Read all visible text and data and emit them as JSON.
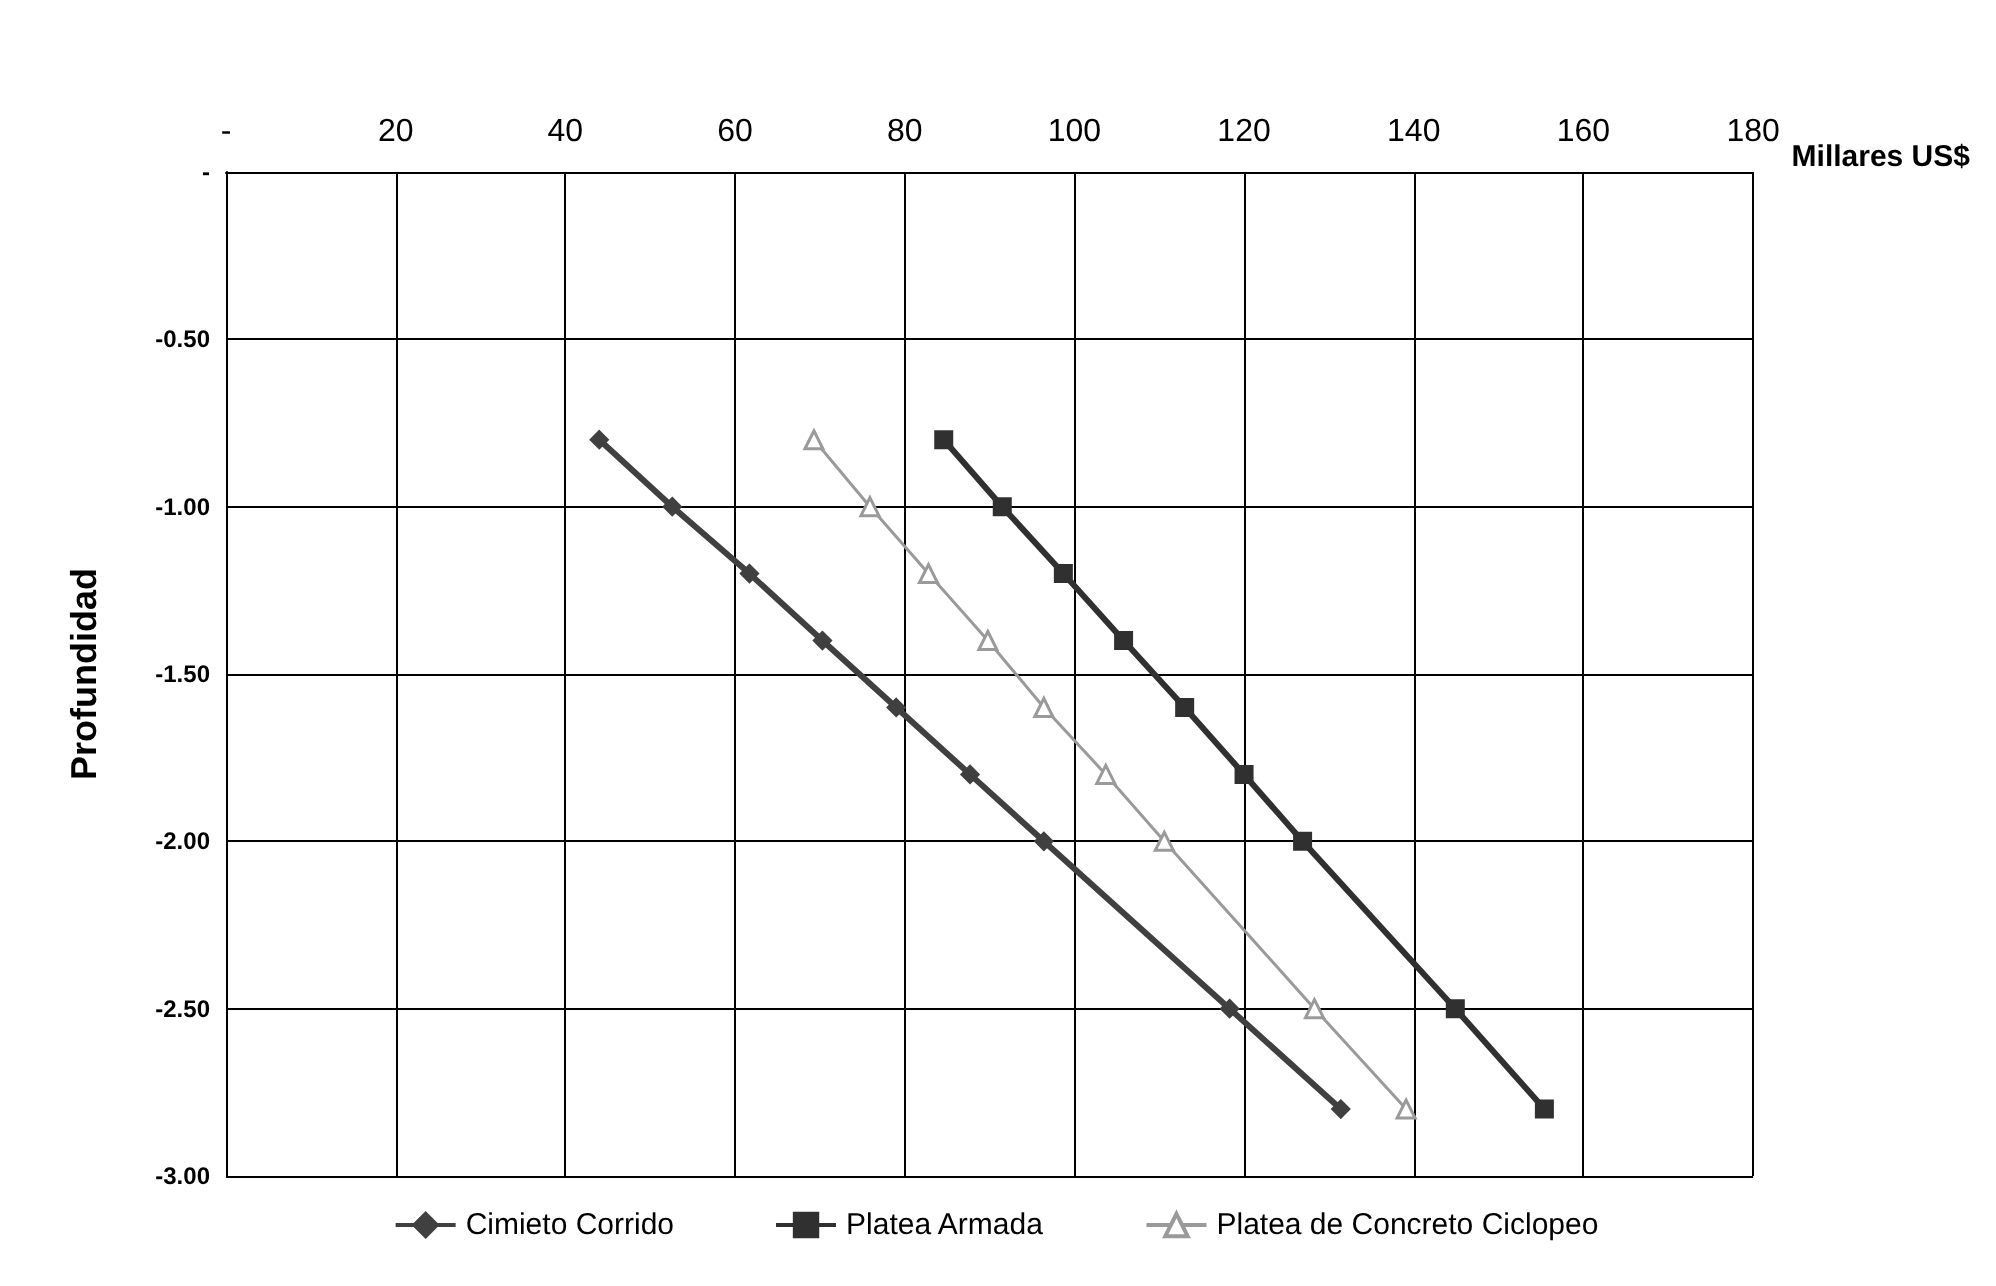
{
  "chart_data": {
    "type": "line",
    "xlabel": "Millares US$",
    "ylabel": "Profundidad",
    "xlim": [
      0,
      180
    ],
    "ylim": [
      -3,
      0
    ],
    "xticks": [
      {
        "value": 0,
        "label": "-"
      },
      20,
      40,
      60,
      80,
      100,
      120,
      140,
      160,
      180
    ],
    "yticks": [
      {
        "value": -3,
        "label": "-3.00"
      },
      {
        "value": -2.5,
        "label": "-2.50"
      },
      {
        "value": -2,
        "label": "-2.00"
      },
      {
        "value": -1.5,
        "label": "-1.50"
      },
      {
        "value": -1,
        "label": "-1.00"
      },
      {
        "value": -0.5,
        "label": "-0.50"
      },
      {
        "value": 0,
        "label": "-"
      }
    ],
    "grid": true,
    "legend": "bottom",
    "series": [
      {
        "name": "Cimieto Corrido",
        "color": "#404040",
        "marker": "diamond",
        "x": [
          44,
          52.6,
          61.7,
          70.3,
          79,
          87.7,
          96.4,
          118.3,
          131.4
        ],
        "values": [
          -0.8,
          -1,
          -1.2,
          -1.4,
          -1.6,
          -1.8,
          -2,
          -2.5,
          -2.8
        ]
      },
      {
        "name": "Platea Armada",
        "color": "#303030",
        "marker": "square",
        "x": [
          84.6,
          91.5,
          98.7,
          105.8,
          113,
          120,
          126.9,
          144.9,
          155.4
        ],
        "values": [
          -0.8,
          -1,
          -1.2,
          -1.4,
          -1.6,
          -1.8,
          -2,
          -2.5,
          -2.8
        ]
      },
      {
        "name": "Platea de Concreto Ciclopeo",
        "color": "#9a9a9a",
        "marker": "triangle",
        "x": [
          69.3,
          75.9,
          82.8,
          89.8,
          96.4,
          103.7,
          110.6,
          128.3,
          139.1
        ],
        "values": [
          -0.8,
          -1,
          -1.2,
          -1.4,
          -1.6,
          -1.8,
          -2,
          -2.5,
          -2.8
        ]
      }
    ]
  }
}
